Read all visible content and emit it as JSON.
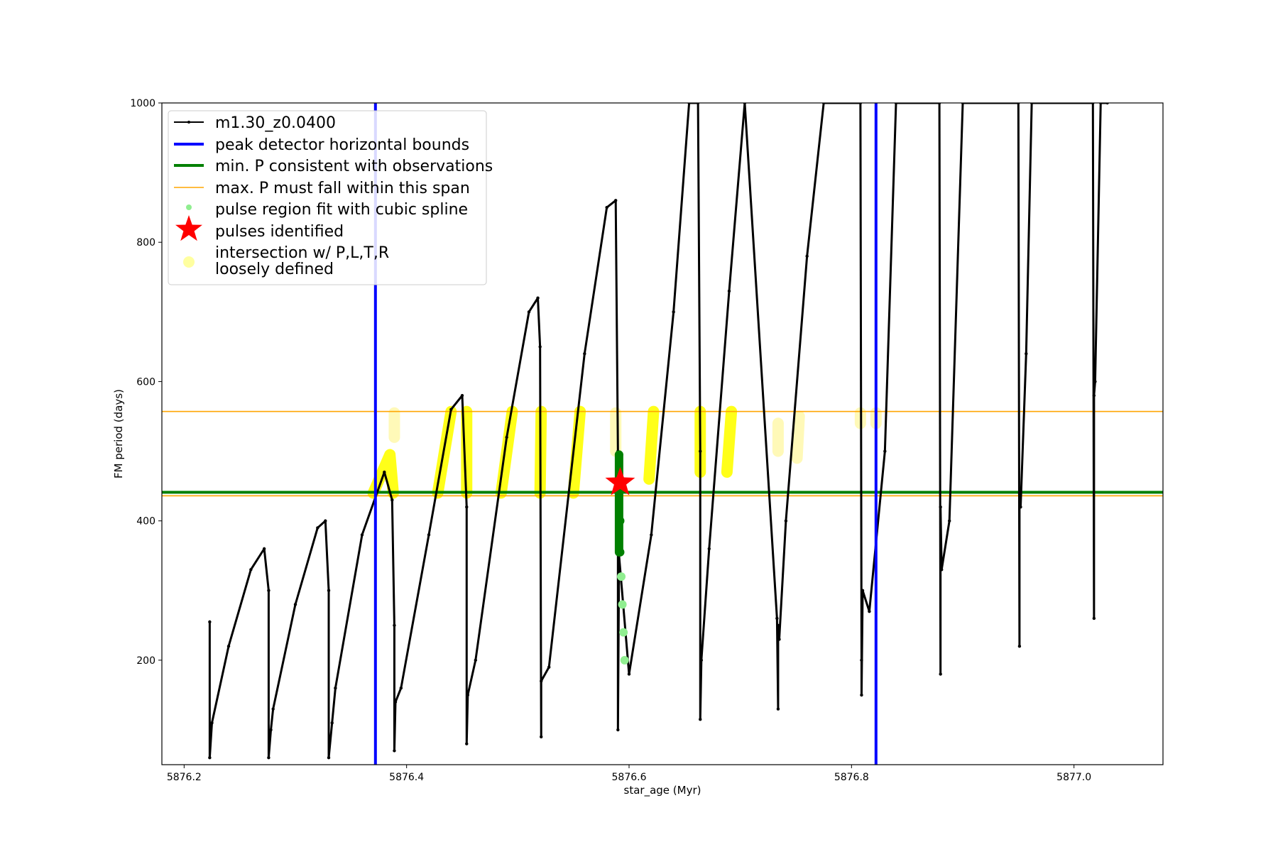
{
  "chart_data": {
    "type": "line",
    "xlabel": "star_age (Myr)",
    "ylabel": "FM period (days)",
    "xlim": [
      5876.18,
      5877.08
    ],
    "ylim": [
      50,
      1000
    ],
    "xticks": [
      "5876.2",
      "5876.4",
      "5876.6",
      "5876.8",
      "5877.0"
    ],
    "yticks": [
      "200",
      "400",
      "600",
      "800",
      "1000"
    ],
    "grid": false,
    "legend_placement": "upper-left",
    "series": [
      {
        "name": "m1.30_z0.0400",
        "color": "#000000",
        "x": [
          5876.223,
          5876.223,
          5876.225,
          5876.24,
          5876.26,
          5876.272,
          5876.276,
          5876.276,
          5876.278,
          5876.28,
          5876.3,
          5876.32,
          5876.327,
          5876.33,
          5876.33,
          5876.333,
          5876.336,
          5876.36,
          5876.38,
          5876.387,
          5876.389,
          5876.389,
          5876.39,
          5876.395,
          5876.42,
          5876.44,
          5876.45,
          5876.454,
          5876.454,
          5876.455,
          5876.462,
          5876.49,
          5876.51,
          5876.518,
          5876.52,
          5876.521,
          5876.521,
          5876.528,
          5876.56,
          5876.58,
          5876.588,
          5876.59,
          5876.59,
          5876.591,
          5876.6,
          5876.62,
          5876.64,
          5876.654,
          5876.662,
          5876.664,
          5876.664,
          5876.665,
          5876.672,
          5876.69,
          5876.704,
          5876.733,
          5876.734,
          5876.734,
          5876.735,
          5876.741,
          5876.76,
          5876.775,
          5876.808,
          5876.809,
          5876.809,
          5876.81,
          5876.816,
          5876.83,
          5876.84,
          5876.879,
          5876.88,
          5876.88,
          5876.881,
          5876.888,
          5876.9,
          5876.95,
          5876.951,
          5876.951,
          5876.952,
          5876.957,
          5876.962,
          5877.017,
          5877.018,
          5877.018,
          5877.019,
          5877.024,
          5877.03
        ],
        "y": [
          255,
          60,
          110,
          220,
          330,
          360,
          300,
          60,
          100,
          130,
          280,
          390,
          400,
          300,
          60,
          110,
          160,
          380,
          470,
          430,
          250,
          70,
          140,
          160,
          380,
          560,
          580,
          420,
          80,
          150,
          200,
          520,
          700,
          720,
          650,
          90,
          170,
          190,
          640,
          850,
          860,
          500,
          100,
          350,
          180,
          380,
          700,
          1000,
          1000,
          500,
          115,
          200,
          360,
          730,
          1000,
          260,
          130,
          250,
          230,
          400,
          780,
          1000,
          1000,
          200,
          150,
          300,
          270,
          500,
          1000,
          1000,
          180,
          420,
          330,
          400,
          1000,
          1000,
          220,
          440,
          420,
          640,
          1000,
          1000,
          260,
          580,
          600,
          1000,
          1000
        ]
      },
      {
        "name": "peak detector horizontal bounds",
        "color": "#0000ff",
        "vlines": [
          5876.372,
          5876.822
        ]
      },
      {
        "name": "min. P consistent with observations",
        "color": "#008000",
        "hline": 441
      },
      {
        "name": "max. P must fall within this span",
        "color": "#ffa500",
        "hlines": [
          436,
          557
        ]
      },
      {
        "name": "pulse region fit with cubic spline",
        "color": "#90ee90",
        "x": [
          5876.591,
          5876.591,
          5876.592,
          5876.592,
          5876.593,
          5876.594,
          5876.595,
          5876.596
        ],
        "y": [
          495,
          450,
          400,
          355,
          320,
          280,
          240,
          200
        ]
      },
      {
        "name": "pulses identified",
        "color": "#ff0000",
        "x": [
          5876.592
        ],
        "y": [
          455
        ]
      },
      {
        "name": "intersection w/ P,L,T,R\nloosely defined",
        "color": "#ffff00",
        "segments": [
          [
            [
              5876.37,
              440
            ],
            [
              5876.385,
              495
            ],
            [
              5876.388,
              440
            ]
          ],
          [
            [
              5876.428,
              440
            ],
            [
              5876.44,
              557
            ]
          ],
          [
            [
              5876.454,
              440
            ],
            [
              5876.454,
              557
            ]
          ],
          [
            [
              5876.485,
              440
            ],
            [
              5876.495,
              557
            ]
          ],
          [
            [
              5876.52,
              440
            ],
            [
              5876.521,
              557
            ]
          ],
          [
            [
              5876.55,
              440
            ],
            [
              5876.556,
              557
            ]
          ],
          [
            [
              5876.618,
              460
            ],
            [
              5876.622,
              557
            ]
          ],
          [
            [
              5876.664,
              470
            ],
            [
              5876.664,
              557
            ]
          ],
          [
            [
              5876.688,
              470
            ],
            [
              5876.692,
              557
            ]
          ]
        ],
        "faint_segments": [
          [
            [
              5876.389,
              520
            ],
            [
              5876.389,
              555
            ]
          ],
          [
            [
              5876.588,
              500
            ],
            [
              5876.588,
              555
            ]
          ],
          [
            [
              5876.734,
              500
            ],
            [
              5876.734,
              540
            ]
          ],
          [
            [
              5876.751,
              490
            ],
            [
              5876.753,
              550
            ]
          ],
          [
            [
              5876.808,
              540
            ],
            [
              5876.808,
              555
            ]
          ],
          [
            [
              5876.822,
              540
            ],
            [
              5876.822,
              555
            ]
          ]
        ]
      }
    ],
    "legend": [
      {
        "label": "m1.30_z0.0400",
        "kind": "line-marker",
        "color": "#000000"
      },
      {
        "label": "peak detector horizontal bounds",
        "kind": "thick-line",
        "color": "#0000ff"
      },
      {
        "label": "min. P consistent with observations",
        "kind": "thick-line",
        "color": "#008000"
      },
      {
        "label": "max. P must fall within this span",
        "kind": "thin-line",
        "color": "#ffa500"
      },
      {
        "label": "pulse region fit with cubic spline",
        "kind": "dot",
        "color": "#90ee90"
      },
      {
        "label": "pulses identified",
        "kind": "star",
        "color": "#ff0000"
      },
      {
        "label": "intersection w/ P,L,T,R",
        "label2": "loosely defined",
        "kind": "big-dot",
        "color": "#ffffa0"
      }
    ]
  }
}
